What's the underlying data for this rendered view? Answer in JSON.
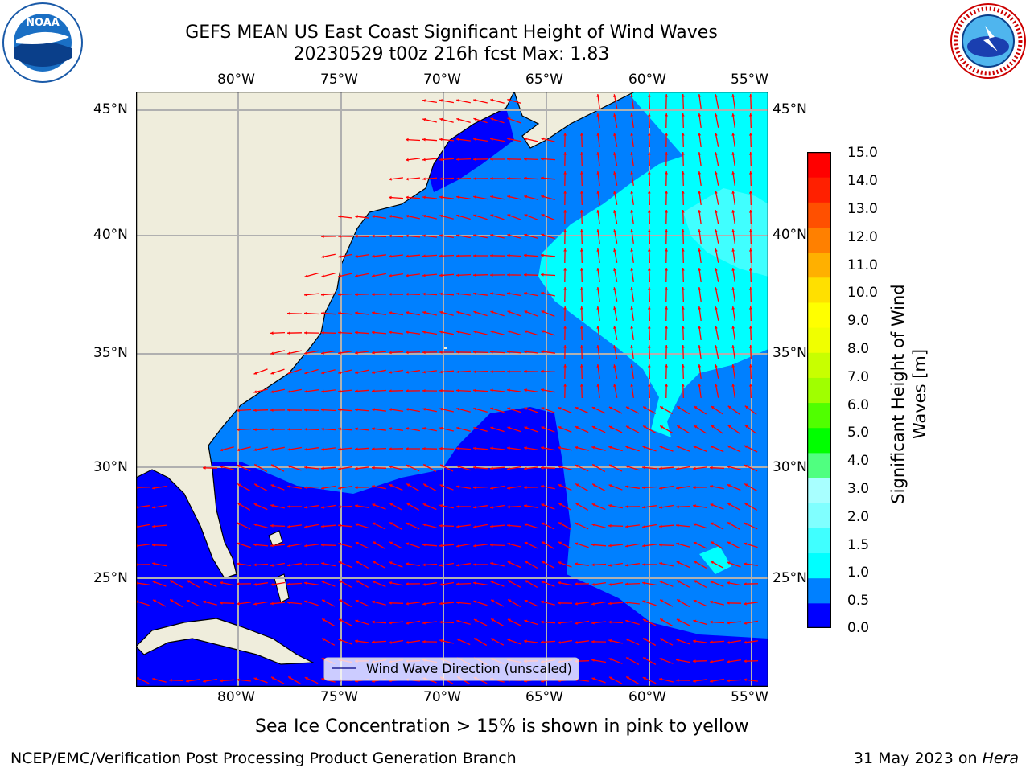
{
  "title": {
    "line1": "GEFS MEAN US East Coast Significant Height of Wind Waves",
    "line2": "20230529 t00z 216h fcst   Max: 1.83"
  },
  "logos": {
    "noaa_text": "NOAA",
    "nws_text": "NATIONAL WEATHER SERVICE"
  },
  "map": {
    "lon_labels": [
      "80°W",
      "75°W",
      "70°W",
      "65°W",
      "60°W",
      "55°W"
    ],
    "lat_labels": [
      "45°N",
      "40°N",
      "35°N",
      "30°N",
      "25°N"
    ],
    "legend_label": "Wind Wave Direction (unscaled)",
    "vector_color": "#ff0000",
    "land_color": "#efeddc"
  },
  "colorbar": {
    "ticks": [
      "15.0",
      "14.0",
      "13.0",
      "12.0",
      "11.0",
      "10.0",
      "9.0",
      "8.0",
      "7.0",
      "6.0",
      "5.0",
      "4.0",
      "3.0",
      "2.0",
      "1.5",
      "1.0",
      "0.5",
      "0.0"
    ],
    "colors_bottom_to_top": [
      "#0000ff",
      "#0080ff",
      "#00ffff",
      "#40ffff",
      "#80ffff",
      "#a8ffff",
      "#50ff80",
      "#00ff00",
      "#50ff00",
      "#a0ff00",
      "#c8ff00",
      "#f0ff00",
      "#ffff00",
      "#ffe000",
      "#ffb000",
      "#ff8000",
      "#ff5000",
      "#ff2000",
      "#ff0000"
    ],
    "label_line1": "Significant Height of Wind",
    "label_line2": "Waves [m]"
  },
  "footer": {
    "note": "Sea Ice Concentration > 15% is shown in pink to yellow",
    "left": "NCEP/EMC/Verification Post Processing Product Generation Branch",
    "date": "31 May 2023 on ",
    "machine": "Hera"
  }
}
